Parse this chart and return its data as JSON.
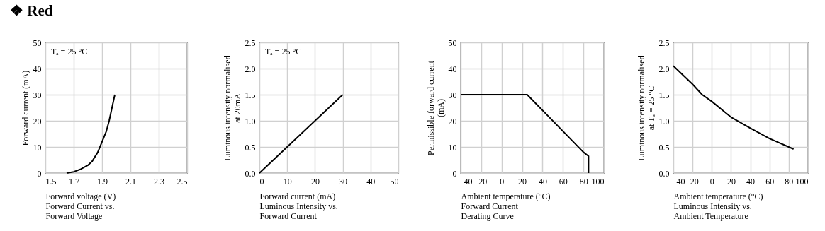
{
  "chart_data": [
    {
      "type": "line",
      "title": "❖ Red",
      "xlabel": "Forward voltage (V)",
      "ylabel": "Forward current (mA)",
      "annotations": [
        "Tₐ = 25 °C",
        "Forward Current vs. Forward Voltage"
      ],
      "x": [
        1.65,
        1.7,
        1.75,
        1.8,
        1.83,
        1.87,
        1.9,
        1.93,
        1.95,
        1.97,
        1.99
      ],
      "values": [
        0,
        0.5,
        1.5,
        3,
        4.5,
        8,
        12,
        16,
        20,
        25,
        30
      ],
      "color": "#000000",
      "xlim": [
        1.5,
        2.5
      ],
      "xticks": [
        1.5,
        1.7,
        1.9,
        2.1,
        2.3,
        2.5
      ],
      "ylim": [
        0,
        50
      ],
      "yticks": [
        0,
        10,
        20,
        30,
        40,
        50
      ],
      "grid": true
    },
    {
      "type": "line",
      "xlabel": "Forward current (mA)",
      "ylabel": "Luminous intensity normalised at 20mA",
      "annotations": [
        "Tₐ = 25 °C",
        "Luminous Intensity vs. Forward Current"
      ],
      "x": [
        0,
        30
      ],
      "values": [
        0,
        1.5
      ],
      "color": "#000000",
      "xlim": [
        0,
        50
      ],
      "xticks": [
        0,
        10,
        20,
        30,
        40,
        50
      ],
      "ylim": [
        0,
        2.5
      ],
      "yticks": [
        {
          "value": 0,
          "label": "0.0"
        },
        0.5,
        {
          "value": 1,
          "label": "1.0"
        },
        1.5,
        {
          "value": 2,
          "label": "2.0"
        },
        2.5
      ],
      "grid": true
    },
    {
      "type": "line",
      "xlabel": "Ambient temperature (°C)",
      "ylabel": "Permissible forward current (mA)",
      "annotations": [
        "Forward Current Derating  Curve"
      ],
      "x": [
        -40,
        25,
        80,
        85,
        85
      ],
      "values": [
        30,
        30,
        8,
        6.5,
        0
      ],
      "color": "#000000",
      "xlim": [
        -40,
        100
      ],
      "xticks": [
        -40,
        -20,
        0,
        20,
        40,
        60,
        80,
        100
      ],
      "ylim": [
        0,
        50
      ],
      "yticks": [
        0,
        10,
        20,
        30,
        40,
        50
      ],
      "grid": true
    },
    {
      "type": "line",
      "xlabel": "Ambient temperature (°C)",
      "ylabel": "Luminous intensity normalised at Tₐ = 25 °C",
      "annotations": [
        "Luminous Intensity vs. Ambient Temperature"
      ],
      "x": [
        -40,
        -20,
        -10,
        0,
        20,
        40,
        60,
        85
      ],
      "values": [
        2.05,
        1.7,
        1.5,
        1.37,
        1.07,
        0.86,
        0.66,
        0.46
      ],
      "color": "#000000",
      "xlim": [
        -40,
        100
      ],
      "xticks": [
        -40,
        -20,
        0,
        20,
        40,
        60,
        80,
        100
      ],
      "ylim": [
        0,
        2.5
      ],
      "yticks": [
        {
          "value": 0,
          "label": "0.0"
        },
        0.5,
        {
          "value": 1,
          "label": "1.0"
        },
        1.5,
        {
          "value": 2,
          "label": "2.0"
        },
        2.5
      ],
      "grid": true
    }
  ]
}
